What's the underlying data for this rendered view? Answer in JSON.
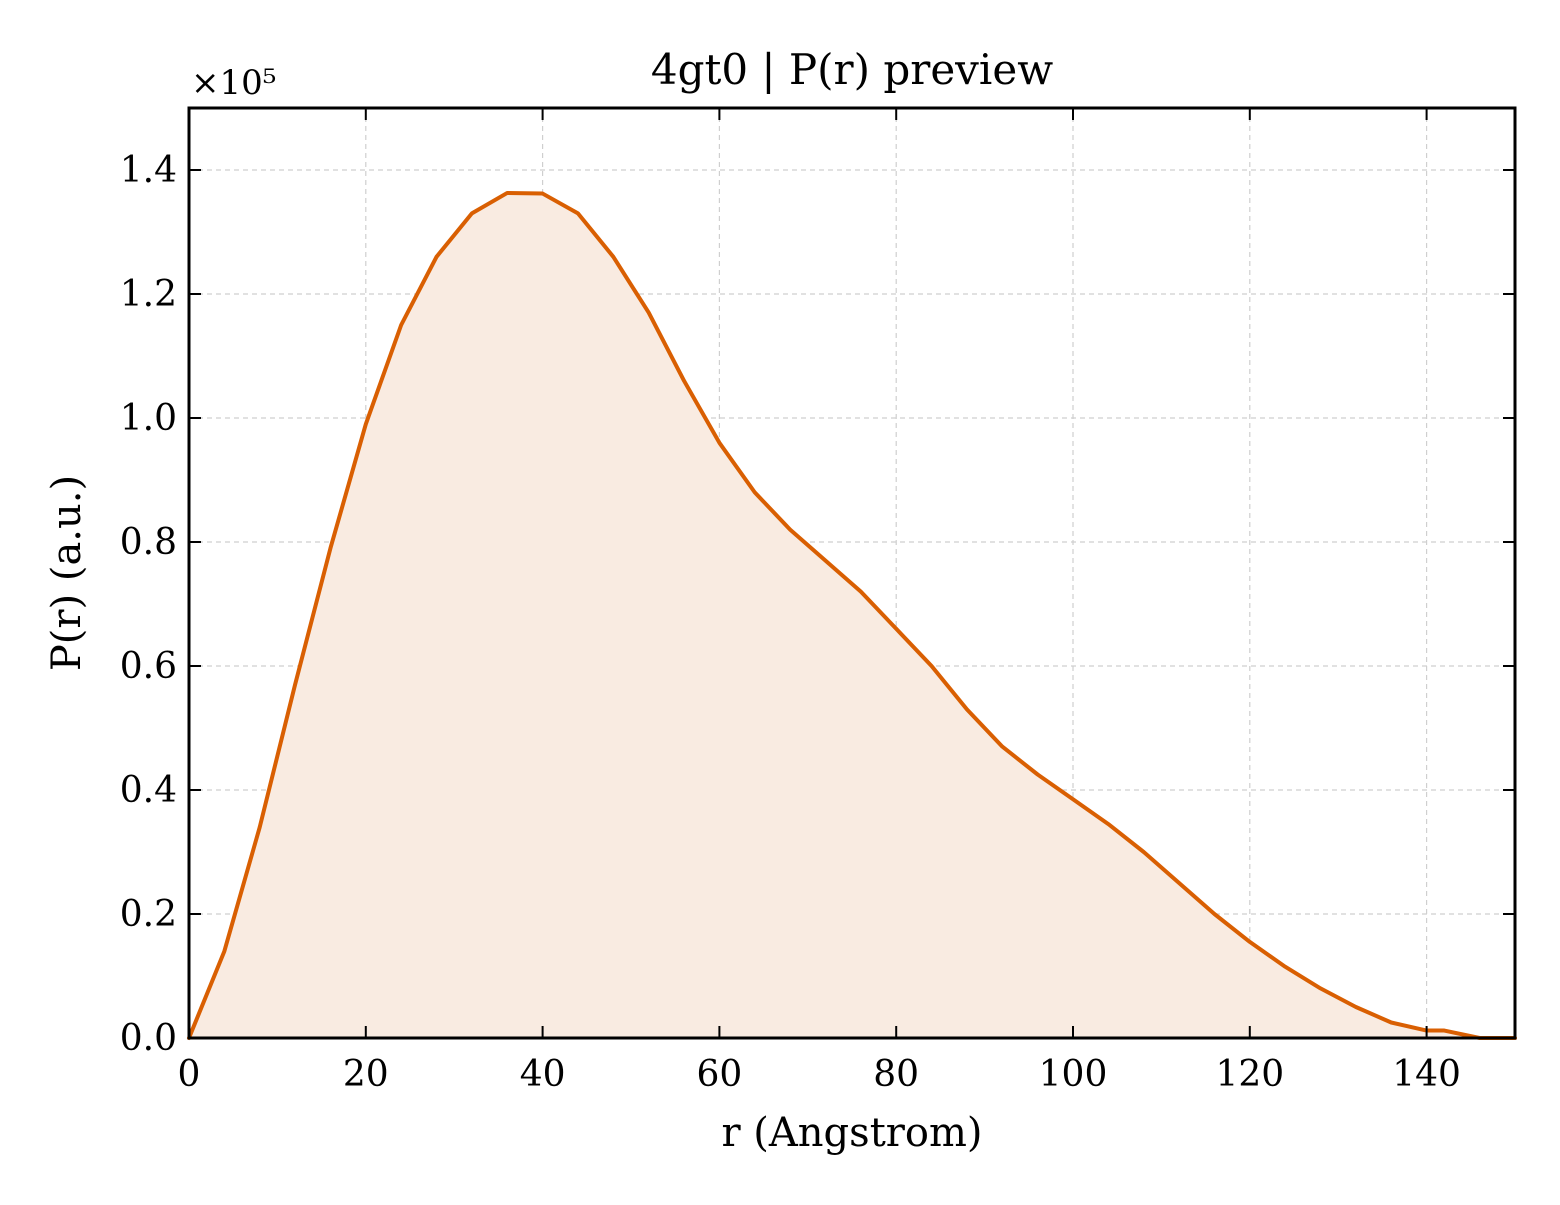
{
  "chart_data": {
    "type": "area",
    "title": "4gt0 | P(r) preview",
    "xlabel": "r (Angstrom)",
    "ylabel": "P(r) (a.u.)",
    "y_multiplier_label": "×10⁵",
    "xlim": [
      0,
      150
    ],
    "ylim": [
      0,
      1.5
    ],
    "x_ticks": [
      0,
      20,
      40,
      60,
      80,
      100,
      120,
      140
    ],
    "x_tick_labels": [
      "0",
      "20",
      "40",
      "60",
      "80",
      "100",
      "120",
      "140"
    ],
    "y_ticks": [
      0.0,
      0.2,
      0.4,
      0.6,
      0.8,
      1.0,
      1.2,
      1.4
    ],
    "y_tick_labels": [
      "0.0",
      "0.2",
      "0.4",
      "0.6",
      "0.8",
      "1.0",
      "1.2",
      "1.4"
    ],
    "grid": true,
    "line_color": "#d95f02",
    "fill_color": "#f9ebe1",
    "series": [
      {
        "x": [
          0,
          4,
          8,
          12,
          16,
          20,
          24,
          28,
          32,
          36,
          40,
          44,
          48,
          52,
          56,
          60,
          64,
          68,
          72,
          76,
          80,
          84,
          88,
          92,
          96,
          100,
          104,
          108,
          112,
          116,
          120,
          124,
          128,
          132,
          136,
          140,
          142,
          146,
          150
        ],
        "y": [
          0.0,
          0.14,
          0.34,
          0.57,
          0.79,
          0.99,
          1.15,
          1.26,
          1.33,
          1.363,
          1.362,
          1.33,
          1.26,
          1.17,
          1.06,
          0.96,
          0.88,
          0.82,
          0.77,
          0.72,
          0.66,
          0.6,
          0.53,
          0.47,
          0.425,
          0.385,
          0.345,
          0.3,
          0.25,
          0.2,
          0.155,
          0.115,
          0.08,
          0.05,
          0.025,
          0.012,
          0.012,
          0.0,
          0.0
        ]
      }
    ]
  }
}
